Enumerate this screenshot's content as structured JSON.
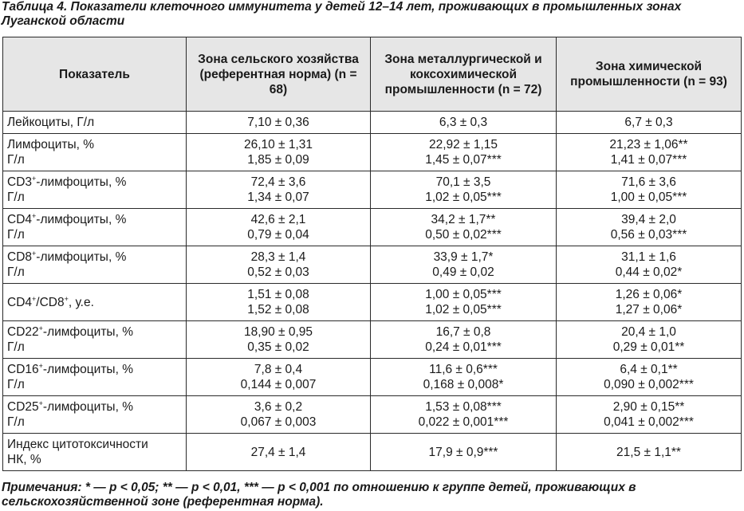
{
  "caption": "Таблица 4. Показатели клеточного иммунитета у детей 12–14 лет, проживающих в промышленных зонах Луганской области",
  "headers": {
    "indicator": "Показатель",
    "col1": "Зона сельского хозяйства (референтная норма) (n = 68)",
    "col2": "Зона металлургической и коксохимической промышленности (n = 72)",
    "col3": "Зона химической промышленности (n = 93)"
  },
  "rows": [
    {
      "label": {
        "l1": "Лейкоциты, Г/л"
      },
      "c1": {
        "l1": "7,10 ± 0,36"
      },
      "c2": {
        "l1": "6,3 ± 0,3"
      },
      "c3": {
        "l1": "6,7 ± 0,3"
      }
    },
    {
      "label": {
        "l1": "Лимфоциты, %",
        "l2": "Г/л"
      },
      "c1": {
        "l1": "26,10 ± 1,31",
        "l2": "1,85 ± 0,09"
      },
      "c2": {
        "l1": "22,92 ± 1,15",
        "l2": "1,45 ± 0,07***"
      },
      "c3": {
        "l1": "21,23 ± 1,06**",
        "l2": "1,41 ± 0,07***"
      }
    },
    {
      "label": {
        "pre": "CD3",
        "sup": "+",
        "post": "-лимфоциты, %",
        "l2": "Г/л"
      },
      "c1": {
        "l1": "72,4 ± 3,6",
        "l2": "1,34 ± 0,07"
      },
      "c2": {
        "l1": "70,1 ± 3,5",
        "l2": "1,02 ± 0,05***"
      },
      "c3": {
        "l1": "71,6 ± 3,6",
        "l2": "1,00 ± 0,05***"
      }
    },
    {
      "label": {
        "pre": "CD4",
        "sup": "+",
        "post": "-лимфоциты, %",
        "l2": "Г/л"
      },
      "c1": {
        "l1": "42,6 ± 2,1",
        "l2": "0,79 ± 0,04"
      },
      "c2": {
        "l1": "34,2 ± 1,7**",
        "l2": "0,50 ± 0,02***"
      },
      "c3": {
        "l1": "39,4 ± 2,0",
        "l2": "0,56 ± 0,03***"
      }
    },
    {
      "label": {
        "pre": "CD8",
        "sup": "+",
        "post": "-лимфоциты, %",
        "l2": "Г/л"
      },
      "c1": {
        "l1": "28,3 ± 1,4",
        "l2": "0,52 ± 0,03"
      },
      "c2": {
        "l1": "33,9 ± 1,7*",
        "l2": "0,49 ± 0,02"
      },
      "c3": {
        "l1": "31,1 ± 1,6",
        "l2": "0,44 ± 0,02*"
      }
    },
    {
      "label": {
        "pre": "CD4",
        "sup": "+",
        "mid": "/CD8",
        "sup2": "+",
        "post": ", у.е."
      },
      "c1": {
        "l1": "1,51 ± 0,08",
        "l2": "1,52 ± 0,08"
      },
      "c2": {
        "l1": "1,00 ± 0,05***",
        "l2": "1,02 ± 0,05***"
      },
      "c3": {
        "l1": "1,26 ± 0,06*",
        "l2": "1,27 ± 0,06*"
      }
    },
    {
      "label": {
        "pre": "CD22",
        "sup": "+",
        "post": "-лимфоциты, %",
        "l2": "Г/л"
      },
      "c1": {
        "l1": "18,90 ± 0,95",
        "l2": "0,35 ± 0,02"
      },
      "c2": {
        "l1": "16,7 ± 0,8",
        "l2": "0,24 ± 0,01***"
      },
      "c3": {
        "l1": "20,4 ± 1,0",
        "l2": "0,29 ± 0,01**"
      }
    },
    {
      "label": {
        "pre": "CD16",
        "sup": "+",
        "post": "-лимфоциты, %",
        "l2": "Г/л"
      },
      "c1": {
        "l1": "7,8 ± 0,4",
        "l2": "0,144 ± 0,007"
      },
      "c2": {
        "l1": "11,6 ± 0,6***",
        "l2": "0,168 ± 0,008*"
      },
      "c3": {
        "l1": "6,4 ± 0,1**",
        "l2": "0,090 ± 0,002***"
      }
    },
    {
      "label": {
        "pre": "CD25",
        "sup": "+",
        "post": "-лимфоциты, %",
        "l2": "Г/л"
      },
      "c1": {
        "l1": "3,6 ± 0,2",
        "l2": "0,067 ± 0,003"
      },
      "c2": {
        "l1": "1,53 ± 0,08***",
        "l2": "0,022 ± 0,001***"
      },
      "c3": {
        "l1": "2,90 ± 0,15**",
        "l2": "0,041 ± 0,002***"
      }
    },
    {
      "label": {
        "l1": "Индекс цитотоксичности",
        "l2": "НК, %"
      },
      "c1": {
        "l1": "27,4 ± 1,4"
      },
      "c2": {
        "l1": "17,9 ± 0,9***"
      },
      "c3": {
        "l1": "21,5 ± 1,1**"
      }
    }
  ],
  "notes": "Примечания: * — p < 0,05; ** — p < 0,01, *** — p < 0,001 по отношению к группе детей, проживающих в сельскохозяйственной зоне (референтная норма)."
}
